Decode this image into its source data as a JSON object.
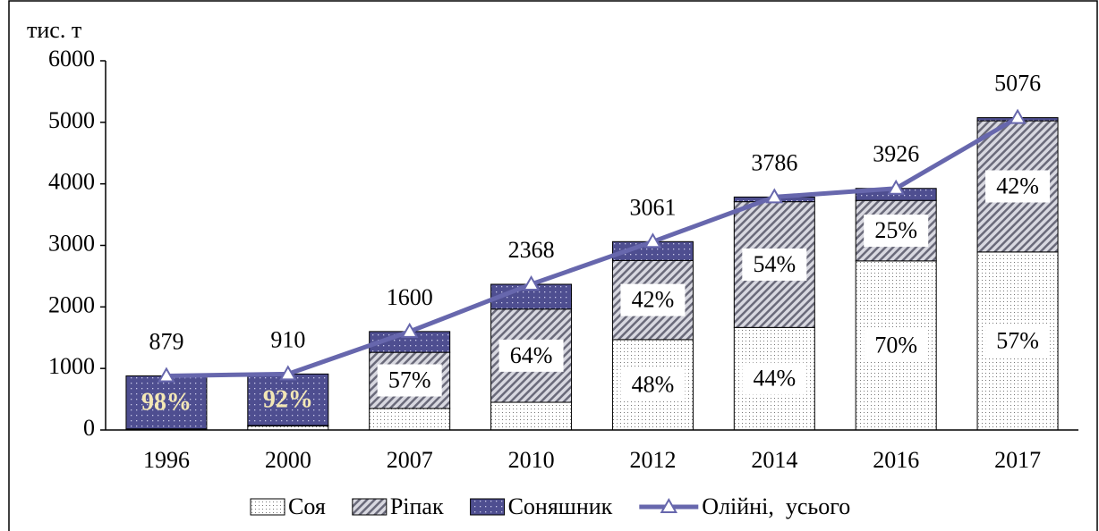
{
  "chart_data": {
    "type": "stacked_bar_line",
    "y_axis_label": "тис. т",
    "categories": [
      "1996",
      "2000",
      "2007",
      "2010",
      "2012",
      "2014",
      "2016",
      "2017"
    ],
    "series": [
      {
        "name": "Соя",
        "color": "#ffffff",
        "type": "bar",
        "values": [
          10,
          65,
          350,
          450,
          1469,
          1666,
          2748,
          2893
        ]
      },
      {
        "name": "Ріпак",
        "color": "#b0b0b8",
        "type": "bar",
        "values": [
          8,
          8,
          912,
          1515,
          1286,
          2044,
          982,
          2132
        ]
      },
      {
        "name": "Соняшник",
        "color": "#4e4e90",
        "type": "bar",
        "values": [
          861,
          837,
          338,
          403,
          306,
          76,
          196,
          51
        ]
      },
      {
        "name": "Олійні,  усього",
        "color": "#6767ad",
        "type": "line",
        "values": [
          879,
          910,
          1600,
          2368,
          3061,
          3786,
          3926,
          5076
        ]
      }
    ],
    "annotations": [
      {
        "category": "1996",
        "series": "Соняшник",
        "text": "98%"
      },
      {
        "category": "2000",
        "series": "Соняшник",
        "text": "92%"
      },
      {
        "category": "2007",
        "series": "Ріпак",
        "text": "57%"
      },
      {
        "category": "2010",
        "series": "Ріпак",
        "text": "64%"
      },
      {
        "category": "2012",
        "series": "Соя",
        "text": "48%"
      },
      {
        "category": "2012",
        "series": "Ріпак",
        "text": "42%"
      },
      {
        "category": "2014",
        "series": "Соя",
        "text": "44%"
      },
      {
        "category": "2014",
        "series": "Ріпак",
        "text": "54%"
      },
      {
        "category": "2016",
        "series": "Соя",
        "text": "70%"
      },
      {
        "category": "2016",
        "series": "Ріпак",
        "text": "25%"
      },
      {
        "category": "2017",
        "series": "Соя",
        "text": "57%"
      },
      {
        "category": "2017",
        "series": "Ріпак",
        "text": "42%"
      }
    ],
    "ylim": [
      0,
      6000
    ],
    "yticks": [
      0,
      1000,
      2000,
      3000,
      4000,
      5000,
      6000
    ],
    "grid": false,
    "legend": "bottom"
  }
}
